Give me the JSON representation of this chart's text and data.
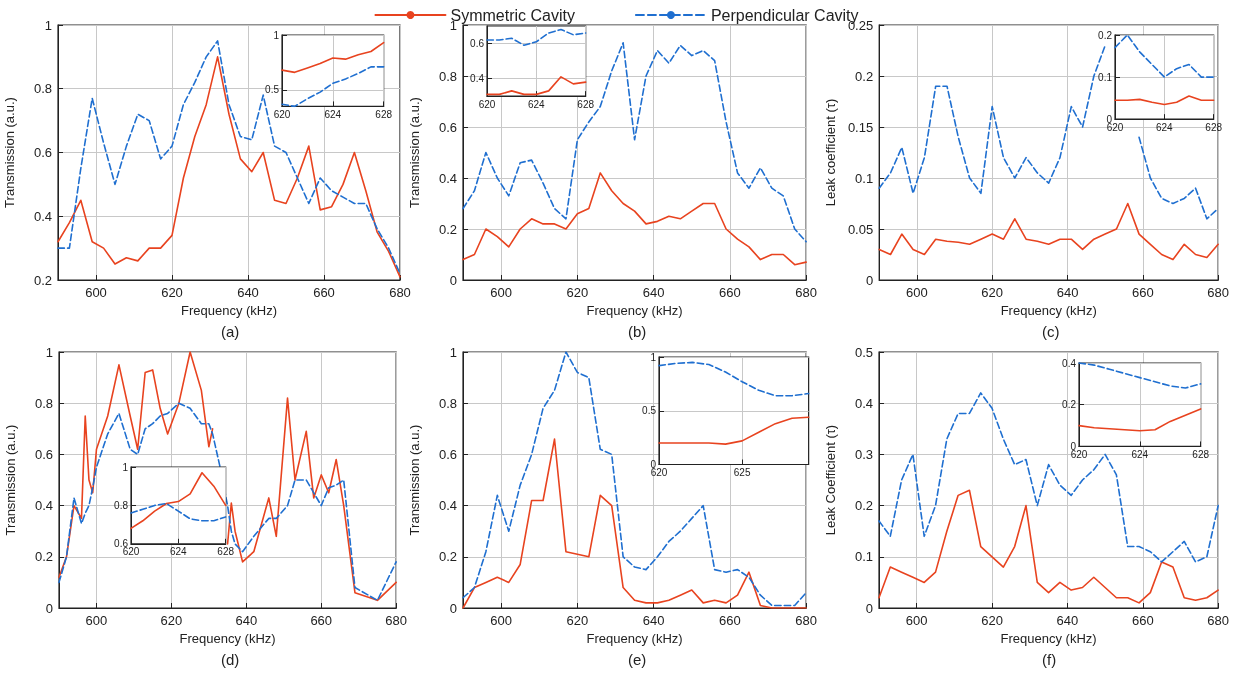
{
  "chart_data": [
    {
      "type": "line",
      "xlabel": "Frequency (kHz)",
      "ylabel": "Transmission (a.u.)",
      "annotations": [
        "(a)"
      ],
      "legend": "top",
      "grid": true,
      "xlim": [
        590,
        680
      ],
      "xticks": [
        600,
        620,
        640,
        660,
        680
      ],
      "ylim": [
        0.2,
        1
      ],
      "yticks": [
        0.2,
        0.4,
        0.6,
        0.8,
        1
      ],
      "x": [
        590,
        593,
        596,
        599,
        602,
        605,
        608,
        611,
        614,
        617,
        620,
        623,
        626,
        629,
        632,
        635,
        638,
        641,
        644,
        647,
        650,
        653,
        656,
        659,
        662,
        665,
        668,
        671,
        674,
        677,
        680
      ],
      "series": [
        {
          "name": "Symmetric Cavity",
          "color": "#e8431f",
          "line_style": "solid",
          "values": [
            0.32,
            0.38,
            0.45,
            0.32,
            0.3,
            0.25,
            0.27,
            0.26,
            0.3,
            0.3,
            0.34,
            0.52,
            0.65,
            0.75,
            0.9,
            0.72,
            0.58,
            0.54,
            0.6,
            0.45,
            0.44,
            0.52,
            0.62,
            0.42,
            0.43,
            0.5,
            0.6,
            0.48,
            0.35,
            0.29,
            0.21
          ]
        },
        {
          "name": "Perpendicular Cavity",
          "color": "#1f6fd0",
          "line_style": "dashed",
          "values": [
            0.3,
            0.3,
            0.55,
            0.77,
            0.63,
            0.5,
            0.62,
            0.72,
            0.7,
            0.58,
            0.62,
            0.75,
            0.82,
            0.9,
            0.95,
            0.75,
            0.65,
            0.64,
            0.78,
            0.62,
            0.6,
            0.52,
            0.44,
            0.52,
            0.48,
            0.46,
            0.44,
            0.44,
            0.36,
            0.3,
            0.22
          ]
        }
      ]
    },
    {
      "type": "line",
      "xlabel": "Frequency (kHz)",
      "ylabel": "Transmission (a.u.)",
      "annotations": [
        "(b)"
      ],
      "grid": true,
      "xlim": [
        590,
        680
      ],
      "xticks": [
        600,
        620,
        640,
        660,
        680
      ],
      "ylim": [
        0,
        1
      ],
      "yticks": [
        0,
        0.2,
        0.4,
        0.6,
        0.8,
        1
      ],
      "x": [
        590,
        593,
        596,
        599,
        602,
        605,
        608,
        611,
        614,
        617,
        620,
        623,
        626,
        629,
        632,
        635,
        638,
        641,
        644,
        647,
        650,
        653,
        656,
        659,
        662,
        665,
        668,
        671,
        674,
        677,
        680
      ],
      "series": [
        {
          "color": "#e8431f",
          "line_style": "solid",
          "values": [
            0.08,
            0.1,
            0.2,
            0.17,
            0.13,
            0.2,
            0.24,
            0.22,
            0.22,
            0.2,
            0.26,
            0.28,
            0.42,
            0.35,
            0.3,
            0.27,
            0.22,
            0.23,
            0.25,
            0.24,
            0.27,
            0.3,
            0.3,
            0.2,
            0.16,
            0.13,
            0.08,
            0.1,
            0.1,
            0.06,
            0.07
          ]
        },
        {
          "color": "#1f6fd0",
          "line_style": "dashed",
          "values": [
            0.28,
            0.35,
            0.5,
            0.4,
            0.33,
            0.46,
            0.47,
            0.38,
            0.28,
            0.24,
            0.55,
            0.62,
            0.68,
            0.82,
            0.93,
            0.55,
            0.8,
            0.9,
            0.85,
            0.92,
            0.88,
            0.9,
            0.86,
            0.62,
            0.42,
            0.36,
            0.44,
            0.36,
            0.33,
            0.2,
            0.15
          ]
        }
      ]
    },
    {
      "type": "line",
      "xlabel": "Frequency (kHz)",
      "ylabel": "Leak coefficient (τ)",
      "annotations": [
        "(c)"
      ],
      "grid": true,
      "xlim": [
        590,
        680
      ],
      "xticks": [
        600,
        620,
        640,
        660,
        680
      ],
      "ylim": [
        0,
        0.25
      ],
      "yticks": [
        0,
        0.05,
        0.1,
        0.15,
        0.2,
        0.25
      ],
      "x": [
        590,
        593,
        596,
        599,
        602,
        605,
        608,
        611,
        614,
        617,
        620,
        623,
        626,
        629,
        632,
        635,
        638,
        641,
        644,
        647,
        650,
        653,
        656,
        659,
        662,
        665,
        668,
        671,
        674,
        677,
        680
      ],
      "series": [
        {
          "color": "#e8431f",
          "line_style": "solid",
          "values": [
            0.03,
            0.025,
            0.045,
            0.03,
            0.025,
            0.04,
            0.038,
            0.037,
            0.035,
            0.04,
            0.045,
            0.04,
            0.06,
            0.04,
            0.038,
            0.035,
            0.04,
            0.04,
            0.03,
            0.04,
            0.045,
            0.05,
            0.075,
            0.045,
            0.035,
            0.025,
            0.02,
            0.035,
            0.025,
            0.022,
            0.035
          ]
        },
        {
          "color": "#1f6fd0",
          "line_style": "dashed",
          "values": [
            0.09,
            0.105,
            0.13,
            0.085,
            0.12,
            0.19,
            0.19,
            0.14,
            0.1,
            0.085,
            0.17,
            0.12,
            0.1,
            0.12,
            0.105,
            0.095,
            0.12,
            0.17,
            0.15,
            0.2,
            0.23,
            null,
            null,
            0.14,
            0.1,
            0.08,
            0.075,
            0.08,
            0.09,
            0.06,
            0.07
          ]
        }
      ]
    },
    {
      "type": "line",
      "xlabel": "Frequency (kHz)",
      "ylabel": "Transmission (a.u.)",
      "annotations": [
        "(d)"
      ],
      "grid": true,
      "xlim": [
        590,
        680
      ],
      "xticks": [
        600,
        620,
        640,
        660,
        680
      ],
      "ylim": [
        0,
        1
      ],
      "yticks": [
        0,
        0.2,
        0.4,
        0.6,
        0.8,
        1
      ],
      "x": [
        590,
        592,
        594,
        596,
        597,
        598,
        599,
        600,
        603,
        606,
        609,
        611,
        613,
        615,
        617,
        619,
        622,
        625,
        628,
        630,
        631,
        633,
        635,
        636,
        637,
        639,
        642,
        646,
        648,
        651,
        653,
        656,
        658,
        660,
        662,
        664,
        666,
        669,
        675,
        680
      ],
      "series": [
        {
          "color": "#e8431f",
          "line_style": "solid",
          "values": [
            0.12,
            0.2,
            0.4,
            0.35,
            0.75,
            0.5,
            0.45,
            0.62,
            0.75,
            0.95,
            0.75,
            0.62,
            0.92,
            0.93,
            0.78,
            0.68,
            0.8,
            1.0,
            0.85,
            0.63,
            0.7,
            null,
            0.25,
            0.41,
            0.3,
            0.18,
            0.22,
            0.43,
            0.28,
            0.82,
            0.5,
            0.69,
            0.43,
            0.52,
            0.45,
            0.58,
            0.4,
            0.06,
            0.03,
            0.1
          ]
        },
        {
          "color": "#1f6fd0",
          "line_style": "dashed",
          "values": [
            0.1,
            0.2,
            0.43,
            0.33,
            0.37,
            0.4,
            0.47,
            0.55,
            0.68,
            0.76,
            0.62,
            0.6,
            0.7,
            0.72,
            0.75,
            0.76,
            0.8,
            0.78,
            0.72,
            0.72,
            0.68,
            0.55,
            0.4,
            0.3,
            0.25,
            0.22,
            0.28,
            0.35,
            0.35,
            0.4,
            0.5,
            0.5,
            0.45,
            0.4,
            0.47,
            0.48,
            0.5,
            0.08,
            0.03,
            0.18
          ]
        }
      ]
    },
    {
      "type": "line",
      "xlabel": "Frequency (kHz)",
      "ylabel": "Transmission (a.u.)",
      "annotations": [
        "(e)"
      ],
      "grid": true,
      "xlim": [
        590,
        680
      ],
      "xticks": [
        600,
        620,
        640,
        660,
        680
      ],
      "ylim": [
        0,
        1
      ],
      "yticks": [
        0,
        0.2,
        0.4,
        0.6,
        0.8,
        1
      ],
      "x": [
        590,
        593,
        596,
        599,
        602,
        605,
        608,
        611,
        614,
        617,
        620,
        623,
        626,
        629,
        632,
        635,
        638,
        641,
        644,
        647,
        650,
        653,
        656,
        659,
        662,
        665,
        668,
        671,
        674,
        677,
        680
      ],
      "series": [
        {
          "color": "#e8431f",
          "line_style": "solid",
          "values": [
            0,
            0.08,
            0.1,
            0.12,
            0.1,
            0.17,
            0.42,
            0.42,
            0.66,
            0.22,
            0.21,
            0.2,
            0.44,
            0.4,
            0.08,
            0.03,
            0.02,
            0.02,
            0.03,
            0.05,
            0.07,
            0.02,
            0.03,
            0.02,
            0.05,
            0.14,
            0.01,
            0,
            0,
            0,
            0
          ]
        },
        {
          "color": "#1f6fd0",
          "line_style": "dashed",
          "values": [
            0.04,
            0.08,
            0.22,
            0.44,
            0.3,
            0.48,
            0.6,
            0.78,
            0.85,
            1.0,
            0.92,
            0.9,
            0.62,
            0.6,
            0.2,
            0.16,
            0.15,
            0.2,
            0.26,
            0.3,
            0.35,
            0.4,
            0.15,
            0.14,
            0.15,
            0.12,
            0.05,
            0.01,
            0.01,
            0.01,
            0.06
          ]
        }
      ]
    },
    {
      "type": "line",
      "xlabel": "Frequency (kHz)",
      "ylabel": "Leak Coefficient (τ)",
      "annotations": [
        "(f)"
      ],
      "grid": true,
      "xlim": [
        590,
        680
      ],
      "xticks": [
        600,
        620,
        640,
        660,
        680
      ],
      "ylim": [
        0,
        0.5
      ],
      "yticks": [
        0,
        0.1,
        0.2,
        0.3,
        0.4,
        0.5
      ],
      "x": [
        590,
        593,
        596,
        599,
        602,
        605,
        608,
        611,
        614,
        617,
        620,
        623,
        626,
        629,
        632,
        635,
        638,
        641,
        644,
        647,
        650,
        653,
        656,
        659,
        662,
        665,
        668,
        671,
        674,
        677,
        680
      ],
      "series": [
        {
          "color": "#e8431f",
          "line_style": "solid",
          "values": [
            0.02,
            0.08,
            0.07,
            0.06,
            0.05,
            0.07,
            0.15,
            0.22,
            0.23,
            0.12,
            0.1,
            0.08,
            0.12,
            0.2,
            0.05,
            0.03,
            0.05,
            0.035,
            0.04,
            0.06,
            0.04,
            0.02,
            0.02,
            0.01,
            0.03,
            0.09,
            0.08,
            0.02,
            0.015,
            0.02,
            0.035
          ]
        },
        {
          "color": "#1f6fd0",
          "line_style": "dashed",
          "values": [
            0.17,
            0.14,
            0.25,
            0.3,
            0.14,
            0.2,
            0.33,
            0.38,
            0.38,
            0.42,
            0.39,
            0.33,
            0.28,
            0.29,
            0.2,
            0.28,
            0.24,
            0.22,
            0.25,
            0.27,
            0.3,
            0.26,
            0.12,
            0.12,
            0.11,
            0.09,
            0.11,
            0.13,
            0.09,
            0.1,
            0.2
          ]
        }
      ]
    },
    {
      "type": "line",
      "grid": true,
      "xlim": [
        620,
        628
      ],
      "xticks": [
        620,
        624,
        628
      ],
      "ylim": [
        0.35,
        1
      ],
      "yticks": [
        0.5,
        1
      ],
      "x": [
        620,
        621,
        622,
        623,
        624,
        625,
        626,
        627,
        628
      ],
      "series": [
        {
          "color": "#e8431f",
          "line_style": "solid",
          "values": [
            0.68,
            0.66,
            0.7,
            0.74,
            0.79,
            0.78,
            0.82,
            0.85,
            0.93
          ]
        },
        {
          "color": "#1f6fd0",
          "line_style": "dashed",
          "values": [
            0.37,
            0.35,
            0.42,
            0.48,
            0.56,
            0.6,
            0.65,
            0.71,
            0.71
          ]
        }
      ]
    },
    {
      "type": "line",
      "grid": true,
      "xlim": [
        620,
        628
      ],
      "xticks": [
        620,
        624,
        628
      ],
      "ylim": [
        0.3,
        0.7
      ],
      "yticks": [
        0.4,
        0.6
      ],
      "x": [
        620,
        621,
        622,
        623,
        624,
        625,
        626,
        627,
        628
      ],
      "series": [
        {
          "color": "#e8431f",
          "line_style": "solid",
          "values": [
            0.31,
            0.31,
            0.33,
            0.31,
            0.31,
            0.33,
            0.41,
            0.37,
            0.38
          ]
        },
        {
          "color": "#1f6fd0",
          "line_style": "dashed",
          "values": [
            0.62,
            0.62,
            0.63,
            0.59,
            0.61,
            0.66,
            0.68,
            0.65,
            0.66
          ]
        }
      ]
    },
    {
      "type": "line",
      "grid": true,
      "xlim": [
        620,
        628
      ],
      "xticks": [
        620,
        624,
        628
      ],
      "ylim": [
        0,
        0.2
      ],
      "yticks": [
        0,
        0.1,
        0.2
      ],
      "x": [
        620,
        621,
        622,
        623,
        624,
        625,
        626,
        627,
        628
      ],
      "series": [
        {
          "color": "#e8431f",
          "line_style": "solid",
          "values": [
            0.045,
            0.045,
            0.047,
            0.04,
            0.035,
            0.04,
            0.055,
            0.045,
            0.045
          ]
        },
        {
          "color": "#1f6fd0",
          "line_style": "dashed",
          "values": [
            0.17,
            0.2,
            0.16,
            0.13,
            0.1,
            0.12,
            0.13,
            0.1,
            0.1
          ]
        }
      ]
    },
    {
      "type": "line",
      "grid": true,
      "xlim": [
        620,
        628
      ],
      "xticks": [
        620,
        624,
        628
      ],
      "ylim": [
        0.6,
        1
      ],
      "yticks": [
        0.6,
        0.8,
        1
      ],
      "x": [
        620,
        621,
        622,
        623,
        624,
        625,
        626,
        627,
        628
      ],
      "series": [
        {
          "color": "#e8431f",
          "line_style": "solid",
          "values": [
            0.68,
            0.72,
            0.77,
            0.81,
            0.82,
            0.86,
            0.97,
            0.9,
            0.8
          ]
        },
        {
          "color": "#1f6fd0",
          "line_style": "dashed",
          "values": [
            0.76,
            0.78,
            0.8,
            0.81,
            0.77,
            0.73,
            0.72,
            0.72,
            0.74
          ]
        }
      ]
    },
    {
      "type": "line",
      "grid": true,
      "xlim": [
        620,
        629
      ],
      "xticks": [
        620,
        625
      ],
      "ylim": [
        0,
        1
      ],
      "yticks": [
        0,
        0.5,
        1
      ],
      "x": [
        620,
        621,
        622,
        623,
        624,
        625,
        626,
        627,
        628,
        629
      ],
      "series": [
        {
          "color": "#e8431f",
          "line_style": "solid",
          "values": [
            0.2,
            0.2,
            0.2,
            0.2,
            0.19,
            0.22,
            0.3,
            0.38,
            0.43,
            0.44
          ]
        },
        {
          "color": "#1f6fd0",
          "line_style": "dashed",
          "values": [
            0.92,
            0.94,
            0.95,
            0.93,
            0.86,
            0.77,
            0.69,
            0.64,
            0.64,
            0.66
          ]
        }
      ]
    },
    {
      "type": "line",
      "grid": true,
      "xlim": [
        620,
        628
      ],
      "xticks": [
        620,
        624,
        628
      ],
      "ylim": [
        0,
        0.4
      ],
      "yticks": [
        0,
        0.2,
        0.4
      ],
      "x": [
        620,
        621,
        622,
        623,
        624,
        625,
        626,
        627,
        628
      ],
      "series": [
        {
          "color": "#e8431f",
          "line_style": "solid",
          "values": [
            0.1,
            0.09,
            0.085,
            0.08,
            0.075,
            0.08,
            0.12,
            0.15,
            0.18
          ]
        },
        {
          "color": "#1f6fd0",
          "line_style": "dashed",
          "values": [
            0.4,
            0.39,
            0.37,
            0.35,
            0.33,
            0.31,
            0.29,
            0.28,
            0.3
          ]
        }
      ]
    }
  ]
}
